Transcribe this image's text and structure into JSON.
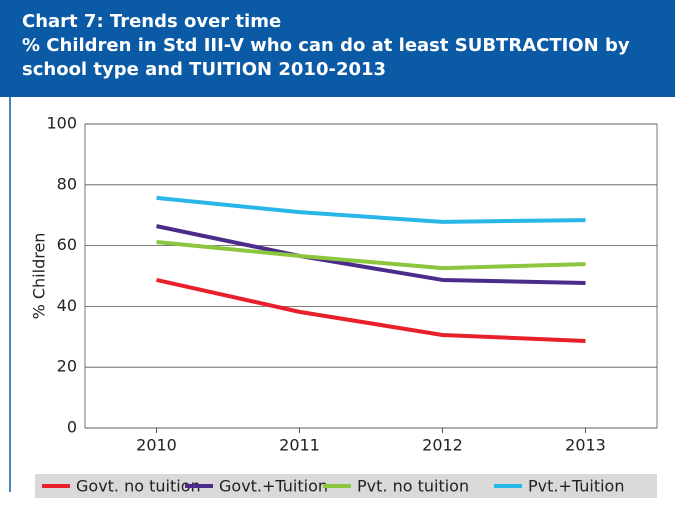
{
  "chart_data": {
    "type": "line",
    "title": "Chart 7: Trends over time",
    "subtitle": "% Children in Std III-V who can do at least SUBTRACTION by school type and TUITION 2010-2013",
    "ylabel": "% Children",
    "categories": [
      "2010",
      "2011",
      "2012",
      "2013"
    ],
    "series": [
      {
        "name": "Govt. no tuition",
        "color": "#e8202a",
        "values": [
          48.7,
          38.2,
          30.6,
          28.6
        ]
      },
      {
        "name": "Govt.+Tuition",
        "color": "#4b2c8a",
        "values": [
          66.4,
          56.6,
          48.7,
          47.7
        ]
      },
      {
        "name": "Pvt. no tuition",
        "color": "#8cc63e",
        "values": [
          61.2,
          56.6,
          52.6,
          53.9
        ]
      },
      {
        "name": "Pvt.+Tuition",
        "color": "#29b6e8",
        "values": [
          75.7,
          71.0,
          67.8,
          68.4
        ]
      }
    ],
    "ylim": [
      0,
      100
    ],
    "yticks": [
      0,
      20,
      40,
      60,
      80,
      100
    ],
    "grid": true
  }
}
